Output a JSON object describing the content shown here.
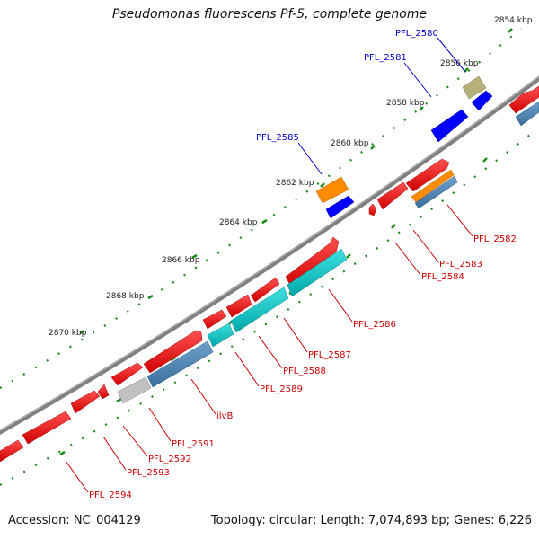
{
  "title": "Pseudomonas fluorescens Pf-5, complete genome",
  "accession": "Accession: NC_004129",
  "summary": "Topology: circular; Length: 7,074,893 bp; Genes: 6,226",
  "colors": {
    "backbone": "#808080",
    "tick_dotted": "#1a8a1a",
    "label_top": "#0000cc",
    "label_bottom": "#cc0000",
    "red": "#ff0000",
    "blue": "#0000ff",
    "orange": "#ff8c00",
    "cyan": "#00c8c8",
    "steelblue": "#4682b4",
    "khaki": "#b5b07a",
    "gray": "#b8b8b8"
  },
  "kbp_ticks": [
    "2854 kbp",
    "2856 kbp",
    "2858 kbp",
    "2860 kbp",
    "2862 kbp",
    "2864 kbp",
    "2866 kbp",
    "2868 kbp",
    "2870 kbp"
  ],
  "gene_labels_top": [
    "PFL_2580",
    "PFL_2581",
    "PFL_2585"
  ],
  "gene_labels_bottom": [
    "PFL_2582",
    "PFL_2583",
    "PFL_2584",
    "PFL_2586",
    "PFL_2587",
    "PFL_2588",
    "PFL_2589",
    "ilvB",
    "PFL_2591",
    "PFL_2592",
    "PFL_2593",
    "PFL_2594"
  ]
}
